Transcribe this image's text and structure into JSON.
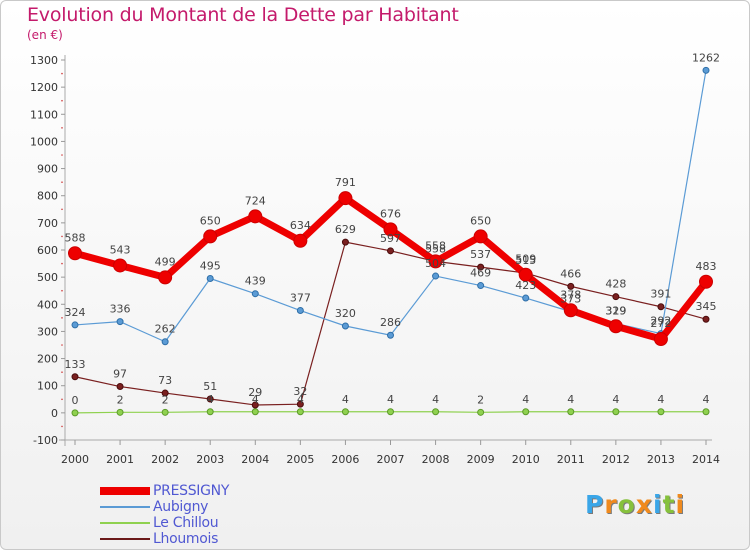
{
  "title": "Evolution du Montant de la Dette par Habitant",
  "subtitle": "(en €)",
  "logo": {
    "text": "Proxiti",
    "letter_colors": [
      "#3aa6e8",
      "#f08a1d",
      "#86c13c",
      "#f08a1d",
      "#3aa6e8",
      "#86c13c",
      "#f08a1d"
    ]
  },
  "chart_data": {
    "type": "line",
    "x": [
      2000,
      2001,
      2002,
      2003,
      2004,
      2005,
      2006,
      2007,
      2008,
      2009,
      2010,
      2011,
      2012,
      2013,
      2014
    ],
    "ylim": [
      -100,
      1300
    ],
    "yticks": [
      -100,
      0,
      100,
      200,
      300,
      400,
      500,
      600,
      700,
      800,
      900,
      1000,
      1100,
      1200,
      1300
    ],
    "grid": false,
    "legend_position": "bottom-left",
    "series": [
      {
        "name": "PRESSIGNY",
        "color": "#ee0000",
        "values": [
          588,
          543,
          499,
          650,
          724,
          634,
          791,
          676,
          558,
          650,
          509,
          378,
          319,
          272,
          483
        ],
        "labels": [
          "588",
          "543",
          "499",
          "650",
          "724",
          "634",
          "791",
          "676",
          "558",
          "650",
          "509",
          "378",
          "319",
          "272",
          "483"
        ]
      },
      {
        "name": "Aubigny",
        "color": "#5b9bd5",
        "values": [
          324,
          336,
          262,
          495,
          439,
          377,
          320,
          286,
          504,
          469,
          423,
          373,
          329,
          292,
          1262
        ],
        "labels": [
          "324",
          "336",
          "262",
          "495",
          "439",
          "377",
          "320",
          "286",
          "504",
          "469",
          "423",
          "373",
          "329",
          "292",
          "1262"
        ]
      },
      {
        "name": "Le Chillou",
        "color": "#8fd14f",
        "values": [
          0,
          2,
          2,
          4,
          4,
          4,
          4,
          4,
          4,
          2,
          4,
          4,
          4,
          4,
          4
        ],
        "labels": [
          "0",
          "2",
          "2",
          "4",
          "4",
          "4",
          "4",
          "4",
          "4",
          "2",
          "4",
          "4",
          "4",
          "4",
          "4"
        ]
      },
      {
        "name": "Lhoumois",
        "color": "#6b1a1a",
        "values": [
          133,
          97,
          73,
          51,
          29,
          32,
          629,
          597,
          558,
          537,
          515,
          466,
          428,
          391,
          345
        ],
        "labels": [
          "133",
          "97",
          "73",
          "51",
          "29",
          "32",
          "629",
          "597",
          "558",
          "537",
          "515",
          "466",
          "428",
          "391",
          "345"
        ]
      }
    ]
  }
}
